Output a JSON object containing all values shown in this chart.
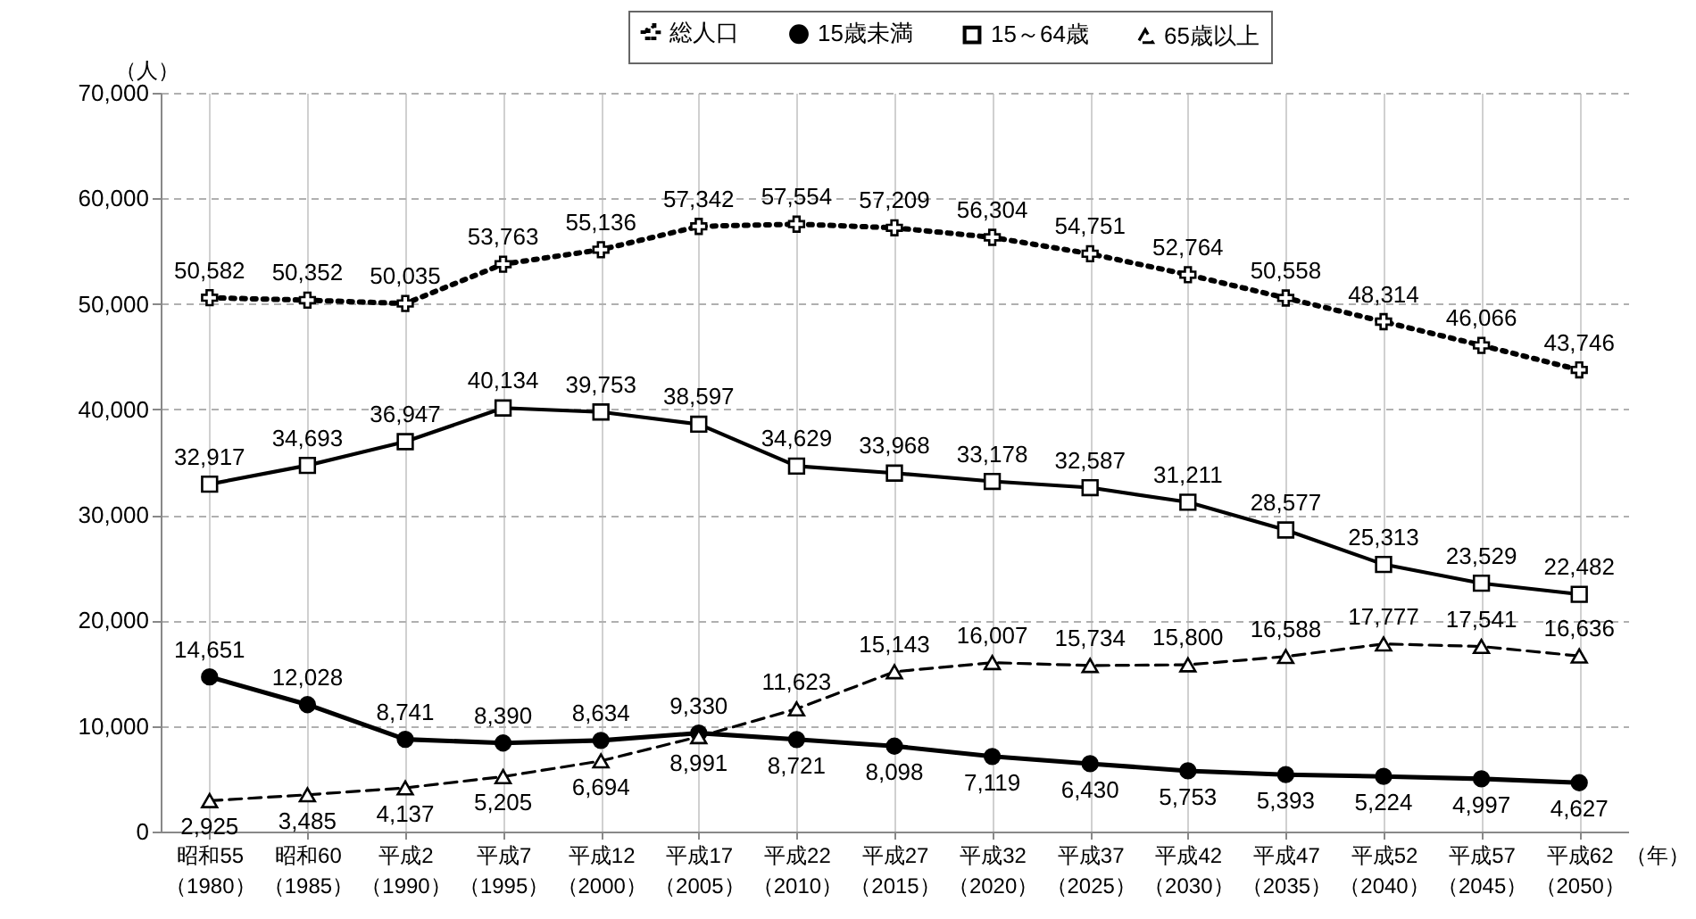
{
  "chart_data": {
    "type": "line",
    "xlabel": "（年）",
    "ylabel": "（人）",
    "categories": [
      "昭和55\n（1980）",
      "昭和60\n（1985）",
      "平成2\n（1990）",
      "平成7\n（1995）",
      "平成12\n（2000）",
      "平成17\n（2005）",
      "平成22\n（2010）",
      "平成27\n（2015）",
      "平成32\n（2020）",
      "平成37\n（2025）",
      "平成42\n（2030）",
      "平成47\n（2035）",
      "平成52\n（2040）",
      "平成57\n（2045）",
      "平成62\n（2050）"
    ],
    "series": [
      {
        "name": "総人口",
        "color": "#000000",
        "marker": "cross",
        "line_style": "dotted",
        "values": [
          50582,
          50352,
          50035,
          53763,
          55136,
          57342,
          57554,
          57209,
          56304,
          54751,
          52764,
          50558,
          48314,
          46066,
          43746
        ],
        "value_labels": [
          "50,582",
          "50,352",
          "50,035",
          "53,763",
          "55,136",
          "57,342",
          "57,554",
          "57,209",
          "56,304",
          "54,751",
          "52,764",
          "50,558",
          "48,314",
          "46,066",
          "43,746"
        ]
      },
      {
        "name": "15歳未満",
        "color": "#000000",
        "marker": "circle",
        "line_style": "solid",
        "values": [
          14651,
          12028,
          8741,
          8390,
          8634,
          9330,
          8721,
          8098,
          7119,
          6430,
          5753,
          5393,
          5224,
          4997,
          4627
        ],
        "value_labels": [
          "14,651",
          "12,028",
          "8,741",
          "8,390",
          "8,634",
          "9,330",
          "8,721",
          "8,098",
          "7,119",
          "6,430",
          "5,753",
          "5,393",
          "5,224",
          "4,997",
          "4,627"
        ]
      },
      {
        "name": "15～64歳",
        "color": "#000000",
        "marker": "square",
        "line_style": "solid",
        "values": [
          32917,
          34693,
          36947,
          40134,
          39753,
          38597,
          34629,
          33968,
          33178,
          32587,
          31211,
          28577,
          25313,
          23529,
          22482
        ],
        "value_labels": [
          "32,917",
          "34,693",
          "36,947",
          "40,134",
          "39,753",
          "38,597",
          "34,629",
          "33,968",
          "33,178",
          "32,587",
          "31,211",
          "28,577",
          "25,313",
          "23,529",
          "22,482"
        ]
      },
      {
        "name": "65歳以上",
        "color": "#000000",
        "marker": "triangle",
        "line_style": "dashed",
        "values": [
          2925,
          3485,
          4137,
          5205,
          6694,
          8991,
          11623,
          15143,
          16007,
          15734,
          15800,
          16588,
          17777,
          17541,
          16636
        ],
        "value_labels": [
          "2,925",
          "3,485",
          "4,137",
          "5,205",
          "6,694",
          "8,991",
          "11,623",
          "15,143",
          "16,007",
          "15,734",
          "15,800",
          "16,588",
          "17,777",
          "17,541",
          "16,636"
        ]
      }
    ],
    "ylim": [
      0,
      70000
    ],
    "yticks": [
      {
        "value": 0,
        "label": "0"
      },
      {
        "value": 10000,
        "label": "10,000"
      },
      {
        "value": 20000,
        "label": "20,000"
      },
      {
        "value": 30000,
        "label": "30,000"
      },
      {
        "value": 40000,
        "label": "40,000"
      },
      {
        "value": 50000,
        "label": "50,000"
      },
      {
        "value": 60000,
        "label": "60,000"
      },
      {
        "value": 70000,
        "label": "70,000"
      }
    ],
    "grid": true,
    "legend": "top right"
  }
}
